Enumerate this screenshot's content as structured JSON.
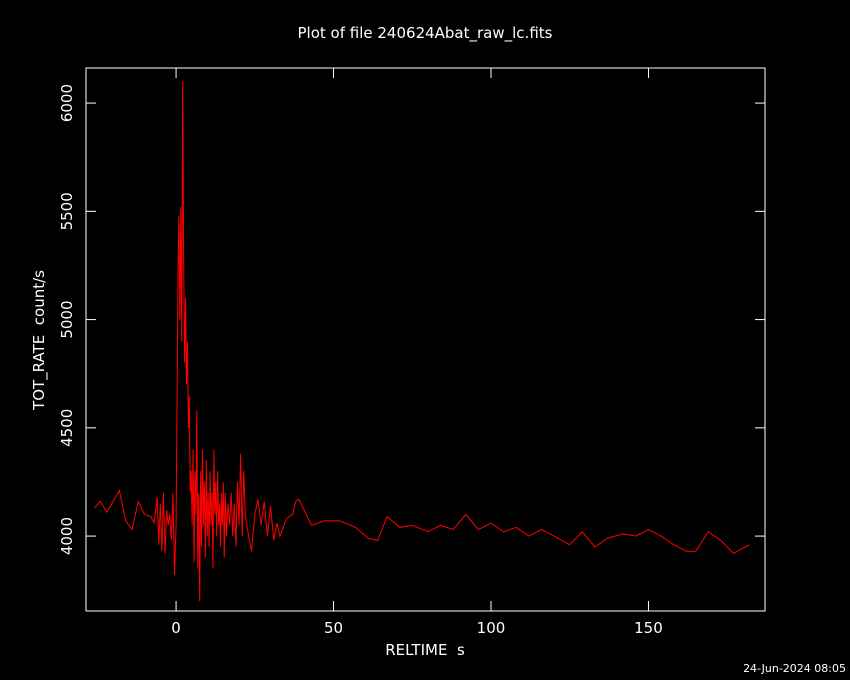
{
  "chart_data": {
    "type": "line",
    "title": "Plot of file 240624Abat_raw_lc.fits",
    "x_label": "RELTIME  s",
    "y_label": "TOT_RATE  count/s",
    "timestamp": "24-Jun-2024 08:05",
    "xlim": [
      -28.6,
      187
    ],
    "ylim": [
      3654,
      6162
    ],
    "xticks": [
      0,
      50,
      100,
      150
    ],
    "yticks": [
      4000,
      4500,
      5000,
      5500,
      6000
    ],
    "series": [
      {
        "color": "#ff0000",
        "x": [
          -26,
          -24,
          -22,
          -18,
          -16,
          -14,
          -12,
          -10,
          -8,
          -7,
          -6,
          -5.5,
          -5,
          -4.5,
          -4,
          -3.5,
          -3,
          -2.5,
          -2,
          -1.5,
          -1,
          -0.5,
          0,
          0.3,
          0.6,
          0.9,
          1.2,
          1.5,
          1.8,
          2.1,
          2.4,
          2.7,
          3.0,
          3.3,
          3.6,
          3.9,
          4.2,
          4.5,
          4.8,
          5.1,
          5.4,
          5.7,
          6.0,
          6.3,
          6.6,
          6.9,
          7.2,
          7.5,
          7.8,
          8.1,
          8.4,
          8.7,
          9.0,
          9.3,
          9.6,
          9.9,
          10.2,
          10.5,
          10.8,
          11.1,
          11.4,
          11.7,
          12.0,
          12.3,
          12.6,
          12.9,
          13.2,
          13.5,
          13.8,
          14.1,
          14.4,
          14.7,
          15.0,
          15.3,
          15.6,
          16,
          16.5,
          17,
          17.5,
          18,
          18.5,
          19,
          19.5,
          20,
          20.5,
          21,
          21.5,
          22,
          23,
          24,
          25,
          26,
          27,
          28,
          29,
          30,
          31,
          32,
          33,
          35,
          37,
          38,
          39,
          40,
          43,
          47,
          52,
          57,
          61,
          64,
          67,
          71,
          75,
          80,
          84,
          88,
          92,
          96,
          100,
          104,
          108,
          112,
          116,
          120,
          125,
          129,
          133,
          137,
          142,
          146,
          150,
          154,
          158,
          162,
          165,
          169,
          173,
          177,
          182
        ],
        "values": [
          4130,
          4160,
          4110,
          4210,
          4070,
          4030,
          4160,
          4100,
          4090,
          4060,
          4180,
          3960,
          4150,
          3930,
          4200,
          3920,
          4120,
          4050,
          4100,
          3980,
          4200,
          3820,
          4050,
          4600,
          5200,
          5480,
          5000,
          5520,
          4900,
          6100,
          5300,
          4800,
          5100,
          4700,
          4900,
          4500,
          4650,
          4200,
          4300,
          4050,
          4400,
          3880,
          4300,
          4100,
          4580,
          3850,
          4200,
          3700,
          4300,
          3950,
          4400,
          4050,
          4250,
          3900,
          4350,
          4000,
          4200,
          3950,
          4300,
          4050,
          4200,
          3850,
          4400,
          4100,
          4250,
          4000,
          4300,
          4050,
          4150,
          3950,
          4200,
          4050,
          4250,
          3900,
          4200,
          4000,
          4150,
          4050,
          4200,
          4000,
          4150,
          3950,
          4250,
          4050,
          4380,
          4000,
          4300,
          4100,
          4000,
          3930,
          4100,
          4170,
          4050,
          4160,
          4000,
          4140,
          3980,
          4060,
          4000,
          4080,
          4100,
          4160,
          4170,
          4140,
          4050,
          4070,
          4070,
          4040,
          3990,
          3980,
          4090,
          4040,
          4050,
          4020,
          4050,
          4030,
          4100,
          4030,
          4060,
          4020,
          4040,
          4000,
          4030,
          4000,
          3960,
          4020,
          3950,
          3990,
          4010,
          4000,
          4030,
          4000,
          3960,
          3930,
          3930,
          4020,
          3980,
          3920,
          3960
        ]
      }
    ]
  }
}
